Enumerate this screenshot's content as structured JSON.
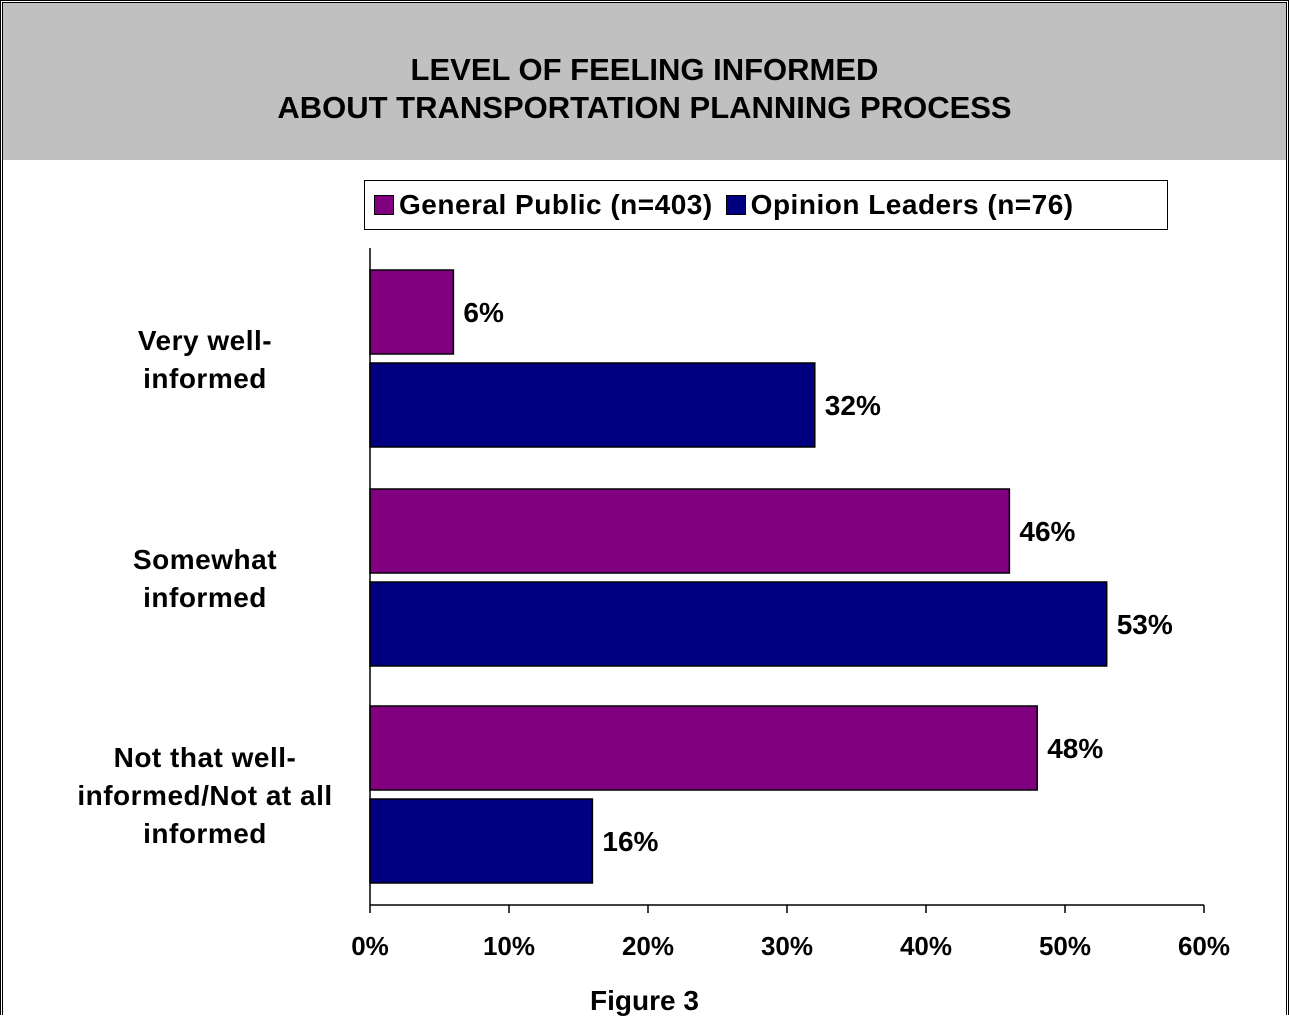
{
  "chart_data": {
    "type": "bar",
    "orientation": "horizontal",
    "title_lines": [
      "LEVEL OF FEELING INFORMED",
      "ABOUT TRANSPORTATION PLANNING PROCESS"
    ],
    "categories": [
      [
        "Very well-",
        "informed"
      ],
      [
        "Somewhat",
        "informed"
      ],
      [
        "Not that well-",
        "informed/Not at all",
        "informed"
      ]
    ],
    "series": [
      {
        "name": "General Public (n=403)",
        "color": "#800080",
        "values": [
          6,
          46,
          48
        ],
        "labels": [
          "6%",
          "46%",
          "48%"
        ]
      },
      {
        "name": "Opinion Leaders (n=76)",
        "color": "#000080",
        "values": [
          32,
          53,
          16
        ],
        "labels": [
          "32%",
          "53%",
          "16%"
        ]
      }
    ],
    "xlim": [
      0,
      60
    ],
    "x_ticks": [
      0,
      10,
      20,
      30,
      40,
      50,
      60
    ],
    "x_tick_labels": [
      "0%",
      "10%",
      "20%",
      "30%",
      "40%",
      "50%",
      "60%"
    ],
    "grid": false,
    "legend_position": "top"
  },
  "caption": "Figure 3"
}
